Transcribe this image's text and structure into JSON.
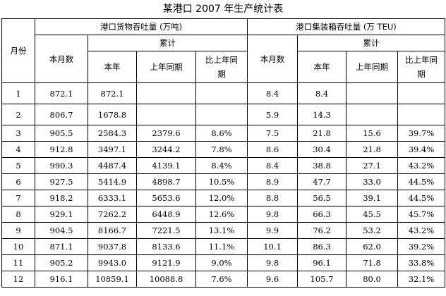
{
  "title": "某港口 2007 年生产统计表",
  "headers": {
    "month": "月份",
    "cargo_group": "港口货物吞吐量 (万吨)",
    "container_group": "港口集装箱吞吐量 (万 TEU)",
    "this_month": "本月数",
    "cumulative": "累计",
    "this_year": "本年",
    "last_year_same": "上年同期",
    "yoy": "比上年同期"
  },
  "rows": [
    {
      "month": "1",
      "cargo_month": "872.1",
      "cargo_year": "872.1",
      "cargo_last": "",
      "cargo_pct": "",
      "cont_month": "8.4",
      "cont_year": "8.4",
      "cont_last": "",
      "cont_pct": ""
    },
    {
      "month": "2",
      "cargo_month": "806.7",
      "cargo_year": "1678.8",
      "cargo_last": "",
      "cargo_pct": "",
      "cont_month": "5.9",
      "cont_year": "14.3",
      "cont_last": "",
      "cont_pct": ""
    },
    {
      "month": "3",
      "cargo_month": "905.5",
      "cargo_year": "2584.3",
      "cargo_last": "2379.6",
      "cargo_pct": "8.6%",
      "cont_month": "7.5",
      "cont_year": "21.8",
      "cont_last": "15.6",
      "cont_pct": "39.7%"
    },
    {
      "month": "4",
      "cargo_month": "912.8",
      "cargo_year": "3497.1",
      "cargo_last": "3244.2",
      "cargo_pct": "7.8%",
      "cont_month": "8.6",
      "cont_year": "30.4",
      "cont_last": "21.8",
      "cont_pct": "39.4%"
    },
    {
      "month": "5",
      "cargo_month": "990.3",
      "cargo_year": "4487.4",
      "cargo_last": "4139.1",
      "cargo_pct": "8.4%",
      "cont_month": "8.4",
      "cont_year": "38.8",
      "cont_last": "27.1",
      "cont_pct": "43.2%"
    },
    {
      "month": "6",
      "cargo_month": "927.5",
      "cargo_year": "5414.9",
      "cargo_last": "4898.7",
      "cargo_pct": "10.5%",
      "cont_month": "8.9",
      "cont_year": "47.7",
      "cont_last": "33.0",
      "cont_pct": "44.5%"
    },
    {
      "month": "7",
      "cargo_month": "918.2",
      "cargo_year": "6333.1",
      "cargo_last": "5653.6",
      "cargo_pct": "12.0%",
      "cont_month": "8.8",
      "cont_year": "56.5",
      "cont_last": "39.1",
      "cont_pct": "44.5%"
    },
    {
      "month": "8",
      "cargo_month": "929.1",
      "cargo_year": "7262.2",
      "cargo_last": "6448.9",
      "cargo_pct": "12.6%",
      "cont_month": "9.8",
      "cont_year": "66.3",
      "cont_last": "45.5",
      "cont_pct": "45.7%"
    },
    {
      "month": "9",
      "cargo_month": "904.5",
      "cargo_year": "8166.7",
      "cargo_last": "7221.5",
      "cargo_pct": "13.1%",
      "cont_month": "9.9",
      "cont_year": "76.2",
      "cont_last": "53.2",
      "cont_pct": "43.2%"
    },
    {
      "month": "10",
      "cargo_month": "871.1",
      "cargo_year": "9037.8",
      "cargo_last": "8133.6",
      "cargo_pct": "11.1%",
      "cont_month": "10.1",
      "cont_year": "86.3",
      "cont_last": "62.0",
      "cont_pct": "39.2%"
    },
    {
      "month": "11",
      "cargo_month": "905.2",
      "cargo_year": "9943.0",
      "cargo_last": "9121.9",
      "cargo_pct": "9.0%",
      "cont_month": "9.8",
      "cont_year": "96.1",
      "cont_last": "71.8",
      "cont_pct": "33.8%"
    },
    {
      "month": "12",
      "cargo_month": "916.1",
      "cargo_year": "10859.1",
      "cargo_last": "10088.8",
      "cargo_pct": "7.6%",
      "cont_month": "9.6",
      "cont_year": "105.7",
      "cont_last": "80.0",
      "cont_pct": "32.1%"
    }
  ]
}
